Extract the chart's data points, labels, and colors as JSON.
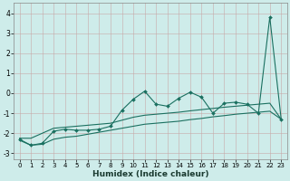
{
  "xlabel": "Humidex (Indice chaleur)",
  "xlim": [
    -0.5,
    23.5
  ],
  "ylim": [
    -3.3,
    4.5
  ],
  "yticks": [
    -3,
    -2,
    -1,
    0,
    1,
    2,
    3,
    4
  ],
  "xticks": [
    0,
    1,
    2,
    3,
    4,
    5,
    6,
    7,
    8,
    9,
    10,
    11,
    12,
    13,
    14,
    15,
    16,
    17,
    18,
    19,
    20,
    21,
    22,
    23
  ],
  "background_color": "#ceecea",
  "grid_color": "#b2d8d4",
  "line_color": "#1a7060",
  "x": [
    0,
    1,
    2,
    3,
    4,
    5,
    6,
    7,
    8,
    9,
    10,
    11,
    12,
    13,
    14,
    15,
    16,
    17,
    18,
    19,
    20,
    21,
    22,
    23
  ],
  "y_main": [
    -2.3,
    -2.6,
    -2.5,
    -1.9,
    -1.8,
    -1.85,
    -1.85,
    -1.8,
    -1.65,
    -0.85,
    -0.3,
    0.1,
    -0.55,
    -0.65,
    -0.25,
    0.05,
    -0.2,
    -1.0,
    -0.5,
    -0.45,
    -0.55,
    -1.0,
    3.8,
    -1.3
  ],
  "y_upper": [
    -2.25,
    -2.25,
    -2.0,
    -1.75,
    -1.7,
    -1.65,
    -1.6,
    -1.55,
    -1.5,
    -1.35,
    -1.2,
    -1.1,
    -1.05,
    -1.0,
    -0.95,
    -0.88,
    -0.82,
    -0.76,
    -0.7,
    -0.65,
    -0.6,
    -0.55,
    -0.5,
    -1.3
  ],
  "y_lower": [
    -2.35,
    -2.6,
    -2.55,
    -2.3,
    -2.2,
    -2.15,
    -2.05,
    -1.95,
    -1.85,
    -1.75,
    -1.65,
    -1.55,
    -1.5,
    -1.45,
    -1.4,
    -1.32,
    -1.26,
    -1.18,
    -1.12,
    -1.05,
    -1.0,
    -0.95,
    -0.9,
    -1.3
  ]
}
